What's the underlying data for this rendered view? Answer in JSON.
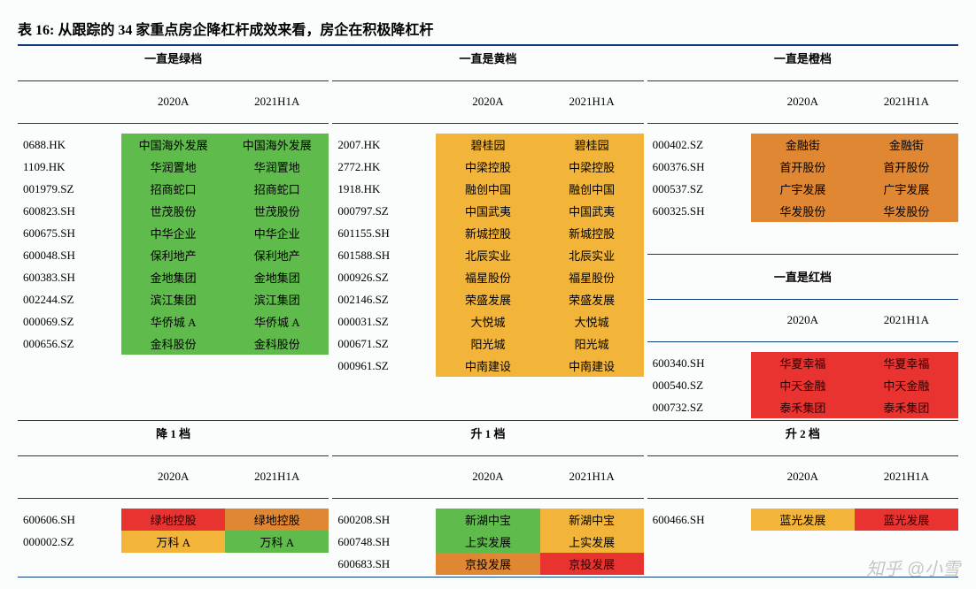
{
  "title": "表 16: 从跟踪的 34 家重点房企降杠杆成效来看，房企在积极降杠杆",
  "col_headers": {
    "a": "2020A",
    "b": "2021H1A"
  },
  "colors": {
    "green": "#5fbb4b",
    "yellow": "#f3b43a",
    "orange": "#e08733",
    "red": "#e93331",
    "rule": "#0a3d7a"
  },
  "top_groups": [
    {
      "name": "一直是绿档",
      "rows": [
        {
          "code": "0688.HK",
          "a": {
            "text": "中国海外发展",
            "color": "green"
          },
          "b": {
            "text": "中国海外发展",
            "color": "green"
          }
        },
        {
          "code": "1109.HK",
          "a": {
            "text": "华润置地",
            "color": "green"
          },
          "b": {
            "text": "华润置地",
            "color": "green"
          }
        },
        {
          "code": "001979.SZ",
          "a": {
            "text": "招商蛇口",
            "color": "green"
          },
          "b": {
            "text": "招商蛇口",
            "color": "green"
          }
        },
        {
          "code": "600823.SH",
          "a": {
            "text": "世茂股份",
            "color": "green"
          },
          "b": {
            "text": "世茂股份",
            "color": "green"
          }
        },
        {
          "code": "600675.SH",
          "a": {
            "text": "中华企业",
            "color": "green"
          },
          "b": {
            "text": "中华企业",
            "color": "green"
          }
        },
        {
          "code": "600048.SH",
          "a": {
            "text": "保利地产",
            "color": "green"
          },
          "b": {
            "text": "保利地产",
            "color": "green"
          }
        },
        {
          "code": "600383.SH",
          "a": {
            "text": "金地集团",
            "color": "green"
          },
          "b": {
            "text": "金地集团",
            "color": "green"
          }
        },
        {
          "code": "002244.SZ",
          "a": {
            "text": "滨江集团",
            "color": "green"
          },
          "b": {
            "text": "滨江集团",
            "color": "green"
          }
        },
        {
          "code": "000069.SZ",
          "a": {
            "text": "华侨城 A",
            "color": "green"
          },
          "b": {
            "text": "华侨城 A",
            "color": "green"
          }
        },
        {
          "code": "000656.SZ",
          "a": {
            "text": "金科股份",
            "color": "green"
          },
          "b": {
            "text": "金科股份",
            "color": "green"
          }
        }
      ]
    },
    {
      "name": "一直是黄档",
      "rows": [
        {
          "code": "2007.HK",
          "a": {
            "text": "碧桂园",
            "color": "yellow"
          },
          "b": {
            "text": "碧桂园",
            "color": "yellow"
          }
        },
        {
          "code": "2772.HK",
          "a": {
            "text": "中梁控股",
            "color": "yellow"
          },
          "b": {
            "text": "中梁控股",
            "color": "yellow"
          }
        },
        {
          "code": "1918.HK",
          "a": {
            "text": "融创中国",
            "color": "yellow"
          },
          "b": {
            "text": "融创中国",
            "color": "yellow"
          }
        },
        {
          "code": "000797.SZ",
          "a": {
            "text": "中国武夷",
            "color": "yellow"
          },
          "b": {
            "text": "中国武夷",
            "color": "yellow"
          }
        },
        {
          "code": "601155.SH",
          "a": {
            "text": "新城控股",
            "color": "yellow"
          },
          "b": {
            "text": "新城控股",
            "color": "yellow"
          }
        },
        {
          "code": "601588.SH",
          "a": {
            "text": "北辰实业",
            "color": "yellow"
          },
          "b": {
            "text": "北辰实业",
            "color": "yellow"
          }
        },
        {
          "code": "000926.SZ",
          "a": {
            "text": "福星股份",
            "color": "yellow"
          },
          "b": {
            "text": "福星股份",
            "color": "yellow"
          }
        },
        {
          "code": "002146.SZ",
          "a": {
            "text": "荣盛发展",
            "color": "yellow"
          },
          "b": {
            "text": "荣盛发展",
            "color": "yellow"
          }
        },
        {
          "code": "000031.SZ",
          "a": {
            "text": "大悦城",
            "color": "yellow"
          },
          "b": {
            "text": "大悦城",
            "color": "yellow"
          }
        },
        {
          "code": "000671.SZ",
          "a": {
            "text": "阳光城",
            "color": "yellow"
          },
          "b": {
            "text": "阳光城",
            "color": "yellow"
          }
        },
        {
          "code": "000961.SZ",
          "a": {
            "text": "中南建设",
            "color": "yellow"
          },
          "b": {
            "text": "中南建设",
            "color": "yellow"
          }
        }
      ]
    },
    {
      "name_top": "一直是橙档",
      "rows_top": [
        {
          "code": "000402.SZ",
          "a": {
            "text": "金融街",
            "color": "orange"
          },
          "b": {
            "text": "金融街",
            "color": "orange"
          }
        },
        {
          "code": "600376.SH",
          "a": {
            "text": "首开股份",
            "color": "orange"
          },
          "b": {
            "text": "首开股份",
            "color": "orange"
          }
        },
        {
          "code": "000537.SZ",
          "a": {
            "text": "广宇发展",
            "color": "orange"
          },
          "b": {
            "text": "广宇发展",
            "color": "orange"
          }
        },
        {
          "code": "600325.SH",
          "a": {
            "text": "华发股份",
            "color": "orange"
          },
          "b": {
            "text": "华发股份",
            "color": "orange"
          }
        }
      ],
      "name_bot": "一直是红档",
      "rows_bot": [
        {
          "code": "600340.SH",
          "a": {
            "text": "华夏幸福",
            "color": "red"
          },
          "b": {
            "text": "华夏幸福",
            "color": "red"
          }
        },
        {
          "code": "000540.SZ",
          "a": {
            "text": "中天金融",
            "color": "red"
          },
          "b": {
            "text": "中天金融",
            "color": "red"
          }
        },
        {
          "code": "000732.SZ",
          "a": {
            "text": "泰禾集团",
            "color": "red"
          },
          "b": {
            "text": "泰禾集团",
            "color": "red"
          }
        }
      ]
    }
  ],
  "bottom_groups": [
    {
      "name": "降 1 档",
      "rows": [
        {
          "code": "600606.SH",
          "a": {
            "text": "绿地控股",
            "color": "red"
          },
          "b": {
            "text": "绿地控股",
            "color": "orange"
          }
        },
        {
          "code": "000002.SZ",
          "a": {
            "text": "万科 A",
            "color": "yellow"
          },
          "b": {
            "text": "万科 A",
            "color": "green"
          }
        }
      ]
    },
    {
      "name": "升 1 档",
      "rows": [
        {
          "code": "600208.SH",
          "a": {
            "text": "新湖中宝",
            "color": "green"
          },
          "b": {
            "text": "新湖中宝",
            "color": "yellow"
          }
        },
        {
          "code": "600748.SH",
          "a": {
            "text": "上实发展",
            "color": "green"
          },
          "b": {
            "text": "上实发展",
            "color": "yellow"
          }
        },
        {
          "code": "600683.SH",
          "a": {
            "text": "京投发展",
            "color": "orange"
          },
          "b": {
            "text": "京投发展",
            "color": "red"
          }
        }
      ]
    },
    {
      "name": "升 2 档",
      "rows": [
        {
          "code": "600466.SH",
          "a": {
            "text": "蓝光发展",
            "color": "yellow"
          },
          "b": {
            "text": "蓝光发展",
            "color": "red"
          }
        }
      ]
    }
  ],
  "watermark": "知乎 @小雪"
}
